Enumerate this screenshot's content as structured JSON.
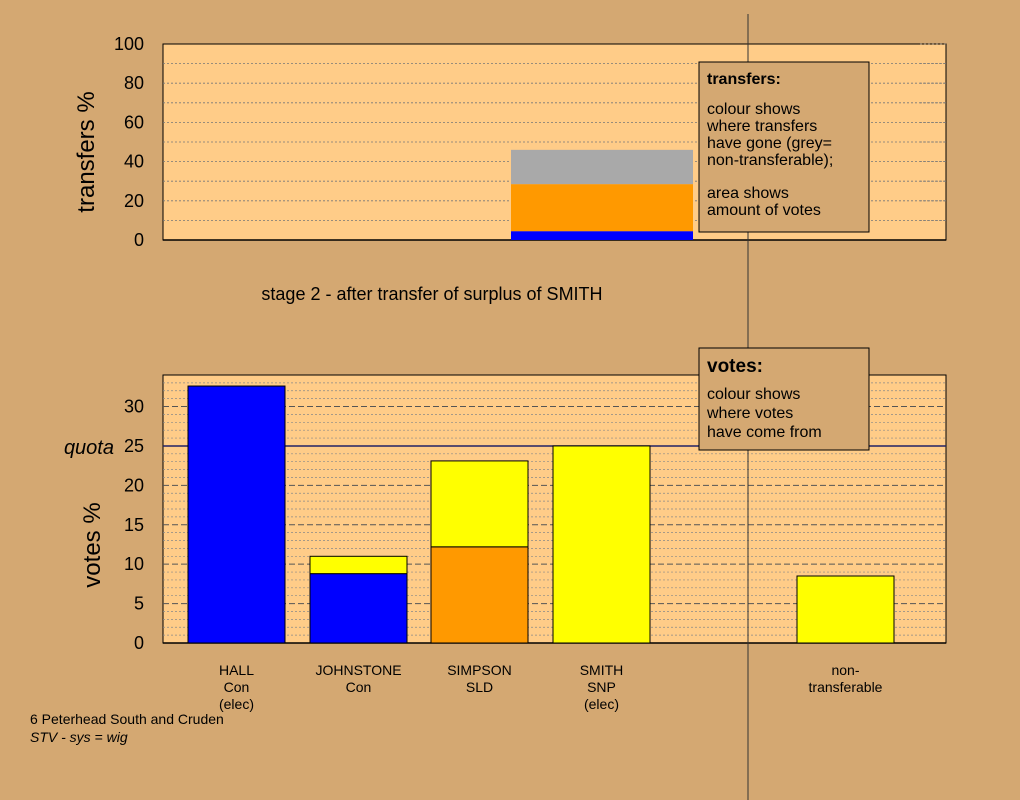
{
  "chart_data": [
    {
      "type": "bar",
      "stacked": true,
      "ylabel": "transfers %",
      "ylim": [
        0,
        100
      ],
      "yticks": [
        "0",
        "20",
        "40",
        "60",
        "80",
        "100"
      ],
      "grid": true,
      "segments": [
        {
          "color": "#0000ff",
          "value": 4.5
        },
        {
          "color": "#ff9900",
          "value": 24
        },
        {
          "color": "#a9a9a9",
          "value": 17.5
        }
      ],
      "legend_box": {
        "title": "transfers:",
        "lines1": [
          "colour shows",
          "where transfers",
          "have gone (grey=",
          "non-transferable);"
        ],
        "lines2": [
          "area shows",
          "amount of votes"
        ]
      },
      "caption": "stage 2 - after transfer of surplus of SMITH"
    },
    {
      "type": "bar",
      "stacked": true,
      "ylabel": "votes %",
      "ylim": [
        0,
        34
      ],
      "yticks": [
        "0",
        "5",
        "10",
        "15",
        "20",
        "25",
        "30"
      ],
      "grid": true,
      "quota": {
        "label": "quota",
        "value": 25
      },
      "categories": [
        {
          "lines": [
            "HALL",
            "Con",
            "(elec)"
          ],
          "segments": [
            {
              "color": "#0000ff",
              "value": 32.6
            }
          ]
        },
        {
          "lines": [
            "JOHNSTONE",
            "Con"
          ],
          "segments": [
            {
              "color": "#0000ff",
              "value": 8.8
            },
            {
              "color": "#ffff00",
              "value": 2.2
            }
          ]
        },
        {
          "lines": [
            "SIMPSON",
            "SLD"
          ],
          "segments": [
            {
              "color": "#ff9900",
              "value": 12.2
            },
            {
              "color": "#ffff00",
              "value": 10.9
            }
          ]
        },
        {
          "lines": [
            "SMITH",
            "SNP",
            "(elec)"
          ],
          "segments": [
            {
              "color": "#ffff00",
              "value": 25.0
            }
          ]
        },
        {
          "lines": [
            "non-",
            "transferable"
          ],
          "segments": [
            {
              "color": "#ffff00",
              "value": 8.5
            }
          ]
        }
      ],
      "legend_box": {
        "title": "votes:",
        "lines": [
          "colour shows",
          "where votes",
          "have come from"
        ]
      }
    }
  ],
  "footer": {
    "line1": "6 Peterhead South and Cruden",
    "line2": "STV - sys = wig"
  },
  "colors": {
    "background": "#d4a872",
    "plot": "#ffcc88",
    "blue": "#0000ff",
    "orange": "#ff9900",
    "yellow": "#ffff00",
    "grey": "#a9a9a9"
  }
}
